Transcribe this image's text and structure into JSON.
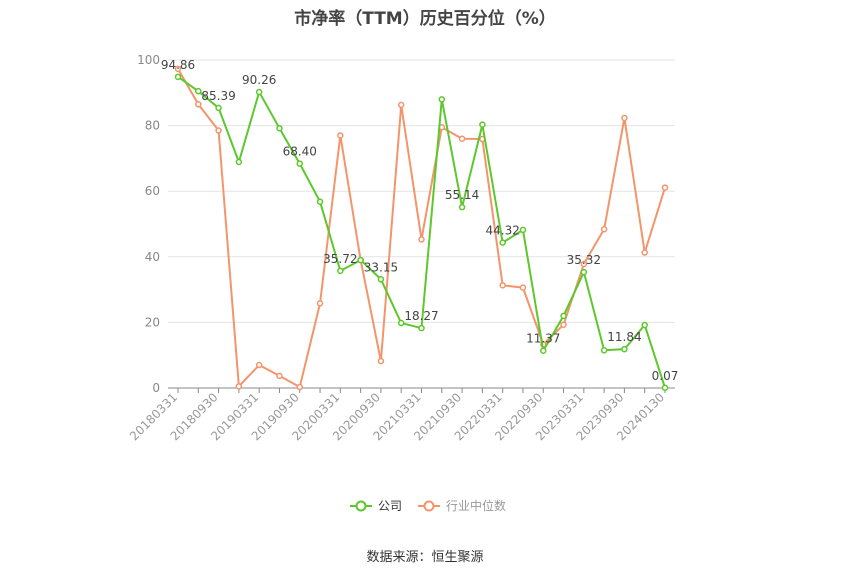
{
  "chart_data": {
    "type": "line",
    "title": "市净率（TTM）历史百分位（%）",
    "source": "数据来源：恒生聚源",
    "ylim": [
      0,
      100
    ],
    "yticks": [
      "0",
      "20",
      "40",
      "60",
      "80",
      "100"
    ],
    "x_tick_labels": [
      "20180331",
      "20180930",
      "20190331",
      "20190930",
      "20200331",
      "20200930",
      "20210331",
      "20210930",
      "20220331",
      "20220930",
      "20230331",
      "20230930",
      "20240130"
    ],
    "grid": "horizontal",
    "legend_position": "bottom",
    "x": [
      "20180331",
      "20180630",
      "20180930",
      "20181231",
      "20190331",
      "20190630",
      "20190930",
      "20191231",
      "20200331",
      "20200630",
      "20200930",
      "20201231",
      "20210331",
      "20210630",
      "20210930",
      "20211231",
      "20220331",
      "20220630",
      "20220930",
      "20221231",
      "20230331",
      "20230630",
      "20230930",
      "20231231",
      "20240130"
    ],
    "series": [
      {
        "name": "公司",
        "color": "#5cc82c",
        "values": [
          94.86,
          90.5,
          85.39,
          68.9,
          90.26,
          79.2,
          68.4,
          56.8,
          35.72,
          39.0,
          33.15,
          19.8,
          18.27,
          88.0,
          55.14,
          80.3,
          44.32,
          48.2,
          11.37,
          22.0,
          35.32,
          11.5,
          11.84,
          19.2,
          0.07
        ],
        "labels": {
          "0": "94.86",
          "2": "85.39",
          "4": "90.26",
          "6": "68.40",
          "8": "35.72",
          "10": "33.15",
          "12": "18.27",
          "14": "55.14",
          "16": "44.32",
          "18": "11.37",
          "20": "35.32",
          "22": "11.84",
          "24": "0.07"
        }
      },
      {
        "name": "行业中位数",
        "color": "#f4946b",
        "values": [
          97.3,
          86.5,
          78.5,
          0.5,
          7.0,
          3.7,
          0.3,
          25.8,
          77.0,
          39.0,
          8.2,
          86.3,
          45.3,
          79.5,
          76.0,
          75.9,
          31.3,
          30.6,
          13.3,
          19.3,
          37.8,
          48.4,
          82.3,
          41.3,
          61.1
        ]
      }
    ]
  }
}
